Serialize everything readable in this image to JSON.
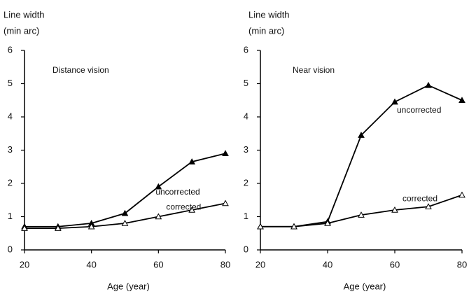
{
  "chart_data": [
    {
      "type": "line",
      "title": "Distance vision",
      "ylabel": [
        "Line width",
        "(min arc)"
      ],
      "xlabel": "Age (year)",
      "x": [
        20,
        30,
        40,
        50,
        60,
        70,
        80
      ],
      "series": [
        {
          "name": "uncorrected",
          "color": "#000000",
          "marker_filled": true,
          "values": [
            0.7,
            0.7,
            0.8,
            1.1,
            1.9,
            2.65,
            2.9
          ]
        },
        {
          "name": "corrected",
          "color": "#000000",
          "marker_filled": false,
          "values": [
            0.65,
            0.65,
            0.7,
            0.8,
            1.0,
            1.2,
            1.4
          ]
        }
      ],
      "xlim": [
        20,
        80
      ],
      "xticks": [
        20,
        40,
        60,
        80
      ],
      "ylim": [
        0,
        6
      ],
      "yticks": [
        0,
        1,
        2,
        3,
        4,
        5,
        6
      ]
    },
    {
      "type": "line",
      "title": "Near vision",
      "ylabel": [
        "Line width",
        "(min arc)"
      ],
      "xlabel": "Age (year)",
      "x": [
        20,
        30,
        40,
        50,
        60,
        70,
        80
      ],
      "series": [
        {
          "name": "uncorrected",
          "color": "#000000",
          "marker_filled": true,
          "values": [
            0.7,
            0.7,
            0.85,
            3.45,
            4.45,
            4.95,
            4.5
          ]
        },
        {
          "name": "corrected",
          "color": "#000000",
          "marker_filled": false,
          "values": [
            0.7,
            0.7,
            0.8,
            1.05,
            1.2,
            1.3,
            1.65
          ]
        }
      ],
      "xlim": [
        20,
        80
      ],
      "xticks": [
        20,
        40,
        60,
        80
      ],
      "ylim": [
        0,
        6
      ],
      "yticks": [
        0,
        1,
        2,
        3,
        4,
        5,
        6
      ]
    }
  ]
}
